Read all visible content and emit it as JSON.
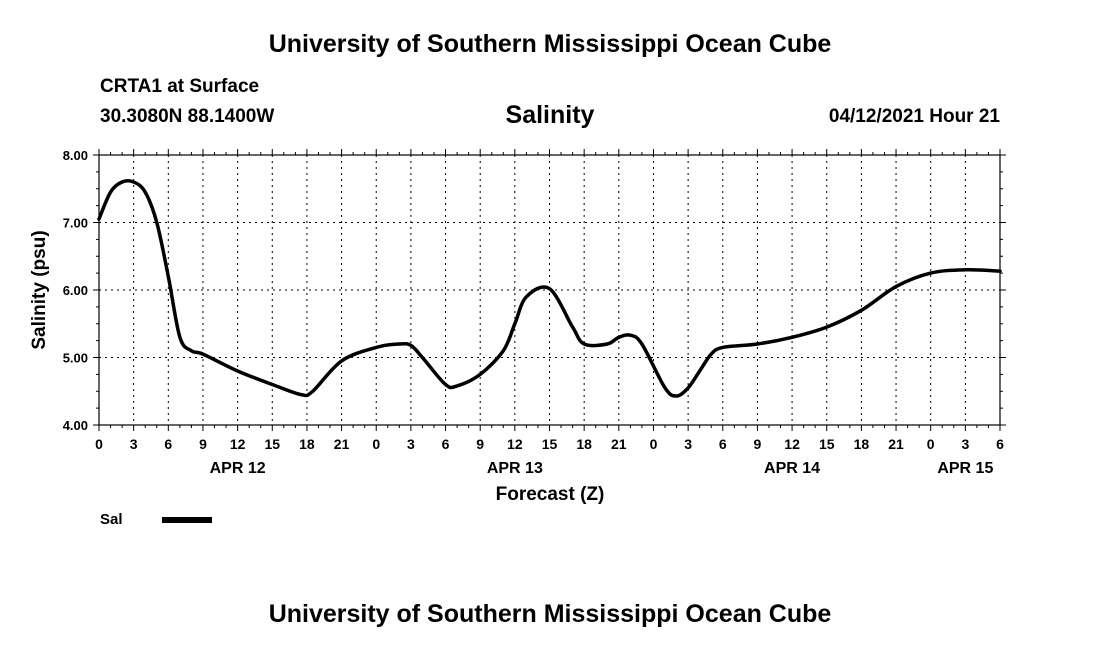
{
  "header": {
    "top_title": "University of Southern Mississippi Ocean Cube",
    "station": "CRTA1 at Surface",
    "coords": "30.3080N  88.1400W",
    "variable": "Salinity",
    "datetime": "04/12/2021 Hour 21",
    "bottom_title": "University of Southern Mississippi Ocean Cube"
  },
  "legend": {
    "label": "Sal"
  },
  "chart_data": {
    "type": "line",
    "title": "Salinity",
    "xlabel": "Forecast (Z)",
    "ylabel": "Salinity (psu)",
    "ylim": [
      4.0,
      8.0
    ],
    "xlim": [
      0,
      78
    ],
    "y_ticks": [
      "4.00",
      "5.00",
      "6.00",
      "7.00",
      "8.00"
    ],
    "x_ticks": [
      "0",
      "3",
      "6",
      "9",
      "12",
      "15",
      "18",
      "21",
      "0",
      "3",
      "6",
      "9",
      "12",
      "15",
      "18",
      "21",
      "0",
      "3",
      "6",
      "9",
      "12",
      "15",
      "18",
      "21",
      "0",
      "3",
      "6"
    ],
    "date_labels": [
      {
        "label": "APR 12",
        "hour": 12
      },
      {
        "label": "APR 13",
        "hour": 36
      },
      {
        "label": "APR 14",
        "hour": 60
      },
      {
        "label": "APR 15",
        "hour": 75
      }
    ],
    "series": [
      {
        "name": "Sal",
        "color": "#000000",
        "x": [
          0,
          1,
          2,
          3,
          4,
          5,
          6,
          7,
          8,
          9,
          12,
          15,
          17.5,
          18.5,
          21,
          24,
          26,
          27,
          28,
          30,
          31,
          33,
          35,
          36,
          37,
          39,
          41,
          42,
          44,
          45,
          46,
          47,
          49,
          50,
          51,
          52,
          53,
          54,
          57,
          60,
          63,
          66,
          69,
          72,
          75,
          78
        ],
        "y": [
          7.05,
          7.45,
          7.6,
          7.6,
          7.45,
          7.0,
          6.2,
          5.3,
          5.1,
          5.05,
          4.8,
          4.6,
          4.45,
          4.5,
          4.95,
          5.15,
          5.2,
          5.18,
          5.0,
          4.6,
          4.58,
          4.75,
          5.1,
          5.5,
          5.9,
          6.02,
          5.45,
          5.2,
          5.2,
          5.3,
          5.33,
          5.2,
          4.55,
          4.43,
          4.55,
          4.8,
          5.05,
          5.15,
          5.2,
          5.3,
          5.45,
          5.7,
          6.05,
          6.25,
          6.3,
          6.28
        ]
      }
    ]
  }
}
